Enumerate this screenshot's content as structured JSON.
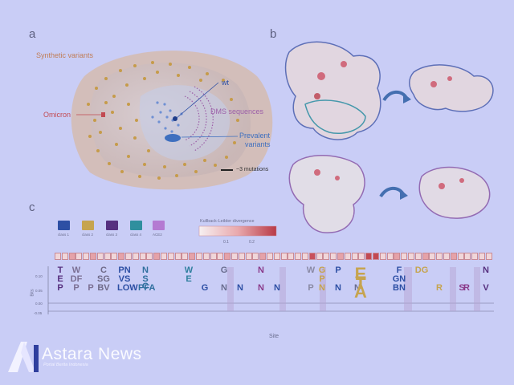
{
  "panels": {
    "a": "a",
    "b": "b",
    "c": "c"
  },
  "panel_a": {
    "synthetic": "Synthetic variants",
    "omicron": "Omicron",
    "wt": "wt",
    "dms": "DMS sequences",
    "prevalent": "Prevalent",
    "variants": "variants",
    "scale": "~3 mutations"
  },
  "panel_c": {
    "classes": [
      {
        "label": "class 1",
        "color": "#2d4fa4"
      },
      {
        "label": "class 2",
        "color": "#c6a44f"
      },
      {
        "label": "class 3",
        "color": "#56307f"
      },
      {
        "label": "class 4",
        "color": "#2f8f9e"
      },
      {
        "label": "ACE2",
        "color": "#b47ad2"
      }
    ],
    "kl_title": "Kullback-Leibler divergence",
    "kl_ticks": [
      "0.1",
      "0.2"
    ],
    "y_title": "Bits",
    "y_ticks": [
      "0.10",
      "0.05",
      "0.00",
      "-0.05"
    ],
    "x_title": "Site",
    "logo": [
      {
        "top": "T",
        "mid": "E",
        "bot": "P",
        "color": "#56307f"
      },
      {
        "top": "W",
        "mid": "DF",
        "bot": "P",
        "color": "#7b6f93"
      },
      {
        "top": "",
        "mid": "",
        "bot": "P",
        "color": "#7b6f93"
      },
      {
        "top": "C",
        "mid": "SG",
        "bot": "BV",
        "color": "#6f6a88"
      },
      {
        "top": "PN",
        "mid": "VS",
        "bot": "LOW",
        "color": "#2d4fa4"
      },
      {
        "top": "N",
        "mid": "S C",
        "bot": "PFA",
        "color": "#2f6f9e"
      },
      {
        "top": "W",
        "mid": "E",
        "bot": "",
        "color": "#2f7f9e"
      },
      {
        "top": "",
        "mid": "",
        "bot": "G",
        "color": "#2d4fa4"
      },
      {
        "top": "G",
        "mid": "",
        "bot": "N",
        "color": "#6a6d8e"
      },
      {
        "top": "",
        "mid": "",
        "bot": "N",
        "color": "#2d4fa4"
      },
      {
        "top": "N",
        "mid": "",
        "bot": "N",
        "color": "#8a3a8a"
      },
      {
        "top": "",
        "mid": "",
        "bot": "N",
        "color": "#2d4fa4"
      },
      {
        "top": "W",
        "mid": "",
        "bot": "P",
        "color": "#8a8aa5"
      },
      {
        "top": "G",
        "mid": "P",
        "bot": "N",
        "color": "#c6a44f"
      },
      {
        "top": "P",
        "mid": "",
        "bot": "N",
        "color": "#2d4fa4"
      },
      {
        "top": "",
        "mid": "",
        "bot": "N",
        "color": "#6a6d8e"
      },
      {
        "top": "E",
        "mid": "T",
        "bot": "A",
        "color": "#c6a44f"
      },
      {
        "top": "F",
        "mid": "GN",
        "bot": "BN",
        "color": "#2d4fa4"
      },
      {
        "top": "DG",
        "mid": "",
        "bot": "",
        "color": "#c6a44f"
      },
      {
        "top": "",
        "mid": "",
        "bot": "R",
        "color": "#c6a44f"
      },
      {
        "top": "",
        "mid": "",
        "bot": "S",
        "color": "#8a3a8a"
      },
      {
        "top": "",
        "mid": "",
        "bot": "R",
        "color": "#8a3a8a"
      },
      {
        "top": "N",
        "mid": "",
        "bot": "V",
        "color": "#56307f"
      }
    ]
  },
  "watermark": {
    "name": "Astara News",
    "tagline": "Portal Berita Indonesia"
  }
}
